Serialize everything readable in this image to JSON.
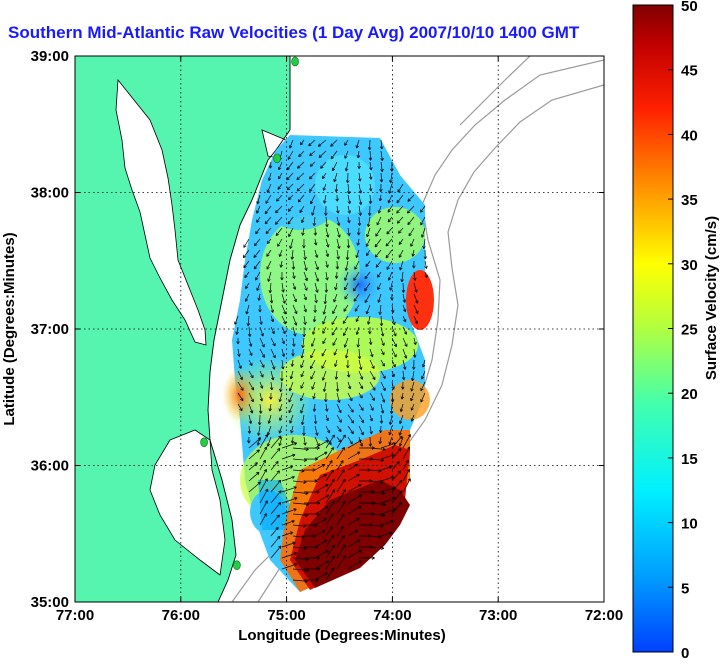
{
  "title": "Southern Mid-Atlantic Raw Velocities (1 Day Avg) 2007/10/10 1400 GMT",
  "axes": {
    "xlabel": "Longitude (Degrees:Minutes)",
    "ylabel": "Latitude (Degrees:Minutes)",
    "x_ticks": [
      "77:00",
      "76:00",
      "75:00",
      "74:00",
      "73:00",
      "72:00"
    ],
    "y_ticks": [
      "39:00",
      "38:00",
      "37:00",
      "36:00",
      "35:00"
    ],
    "xlim": [
      -77,
      -72
    ],
    "ylim": [
      35,
      39
    ],
    "grid": true
  },
  "colorbar": {
    "label": "Surface Velocity (cm/s)",
    "range": [
      0,
      50
    ],
    "ticks": [
      "0",
      "5",
      "10",
      "15",
      "20",
      "25",
      "30",
      "35",
      "40",
      "45",
      "50"
    ],
    "colormap": "jet"
  },
  "colors": {
    "title": "#1a1aff",
    "land": "#55f5b0",
    "coast": "#000000",
    "bathymetry": "#999999",
    "station": "#22cc44"
  },
  "map": {
    "stations": [
      [
        -74.92,
        38.96
      ],
      [
        -75.09,
        38.25
      ],
      [
        -75.78,
        36.17
      ],
      [
        -75.47,
        35.27
      ]
    ]
  }
}
